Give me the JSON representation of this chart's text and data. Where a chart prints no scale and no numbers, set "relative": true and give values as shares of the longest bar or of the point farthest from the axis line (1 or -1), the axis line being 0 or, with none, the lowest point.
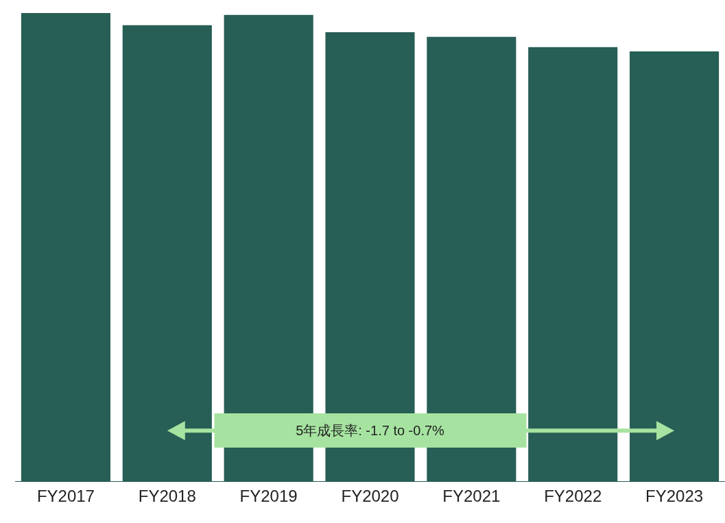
{
  "chart_data": {
    "type": "bar",
    "relative": true,
    "categories": [
      "FY2017",
      "FY2018",
      "FY2019",
      "FY2020",
      "FY2021",
      "FY2022",
      "FY2023"
    ],
    "values": [
      1,
      0.974,
      0.996,
      0.959,
      0.949,
      0.927,
      0.918
    ],
    "color": "#275e55",
    "annotations": [
      "5年成長率: -1.7 to -0.7%"
    ]
  }
}
